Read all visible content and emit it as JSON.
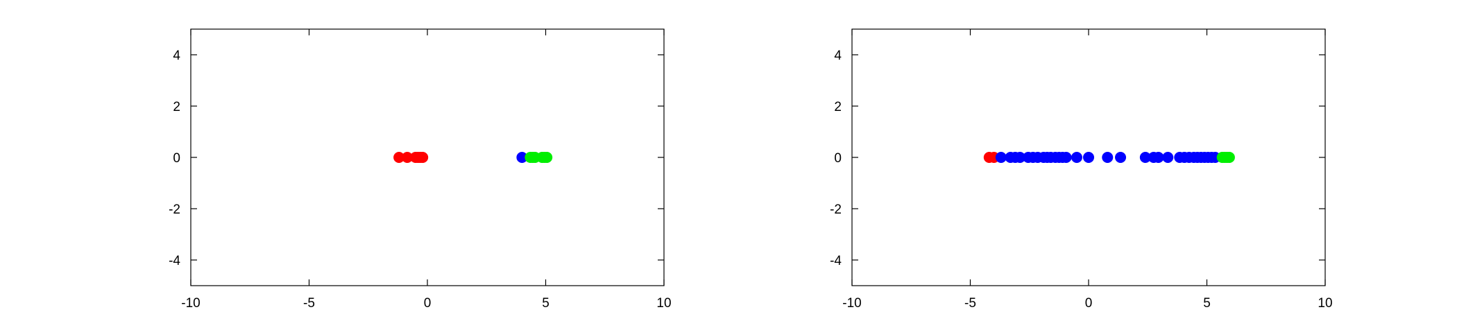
{
  "chart_data": [
    {
      "type": "scatter",
      "title": "",
      "xlabel": "",
      "ylabel": "",
      "xlim": [
        -10,
        10
      ],
      "ylim": [
        -5,
        5
      ],
      "xticks": [
        -10,
        -5,
        0,
        5,
        10
      ],
      "yticks": [
        -4,
        -2,
        0,
        2,
        4
      ],
      "xtick_labels": [
        "-10",
        "-5",
        "0",
        "5",
        "10"
      ],
      "ytick_labels": [
        "-4",
        "-2",
        "0",
        "2",
        "4"
      ],
      "grid": false,
      "series": [
        {
          "color": "#ff0000",
          "x": [
            -1.2,
            -0.85,
            -0.5,
            -0.4,
            -0.3,
            -0.2
          ],
          "y": [
            0,
            0,
            0,
            0,
            0,
            0
          ]
        },
        {
          "color": "#0000ff",
          "x": [
            4.0
          ],
          "y": [
            0
          ]
        },
        {
          "color": "#00ee00",
          "x": [
            4.35,
            4.45,
            4.55,
            4.85,
            4.95,
            5.05
          ],
          "y": [
            0,
            0,
            0,
            0,
            0,
            0
          ]
        }
      ]
    },
    {
      "type": "scatter",
      "title": "",
      "xlabel": "",
      "ylabel": "",
      "xlim": [
        -10,
        10
      ],
      "ylim": [
        -5,
        5
      ],
      "xticks": [
        -10,
        -5,
        0,
        5,
        10
      ],
      "yticks": [
        -4,
        -2,
        0,
        2,
        4
      ],
      "xtick_labels": [
        "-10",
        "-5",
        "0",
        "5",
        "10"
      ],
      "ytick_labels": [
        "-4",
        "-2",
        "0",
        "2",
        "4"
      ],
      "grid": false,
      "series": [
        {
          "color": "#ff0000",
          "x": [
            -4.2,
            -4.0
          ],
          "y": [
            0,
            0
          ]
        },
        {
          "color": "#0000ff",
          "x": [
            -3.7,
            -3.3,
            -3.1,
            -2.9,
            -2.55,
            -2.35,
            -2.15,
            -1.9,
            -1.75,
            -1.6,
            -1.4,
            -1.25,
            -1.1,
            -0.95,
            -0.5,
            0.0,
            0.8,
            1.35,
            2.4,
            2.75,
            2.95,
            3.35,
            3.85,
            4.05,
            4.25,
            4.45,
            4.6,
            4.75,
            4.9,
            5.05,
            5.2,
            5.35
          ],
          "y": [
            0,
            0,
            0,
            0,
            0,
            0,
            0,
            0,
            0,
            0,
            0,
            0,
            0,
            0,
            0,
            0,
            0,
            0,
            0,
            0,
            0,
            0,
            0,
            0,
            0,
            0,
            0,
            0,
            0,
            0,
            0,
            0
          ]
        },
        {
          "color": "#00ee00",
          "x": [
            5.65,
            5.75,
            5.85,
            5.95
          ],
          "y": [
            0,
            0,
            0,
            0
          ]
        }
      ]
    }
  ]
}
